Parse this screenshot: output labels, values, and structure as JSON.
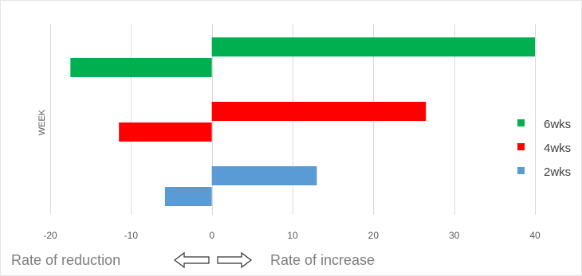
{
  "chart_data": {
    "type": "bar",
    "orientation": "horizontal",
    "ylabel": "WEEK",
    "xlim": [
      -20,
      40
    ],
    "xticks": [
      -20,
      -10,
      0,
      10,
      20,
      30,
      40
    ],
    "grid": true,
    "legend_position": "right",
    "series": [
      {
        "name": "6wks",
        "color": "#00b050",
        "values": [
          40,
          -17.5
        ]
      },
      {
        "name": "4wks",
        "color": "#ff0000",
        "values": [
          26.5,
          -11.5
        ]
      },
      {
        "name": "2wks",
        "color": "#5b9bd5",
        "values": [
          13,
          -5.8
        ]
      }
    ],
    "annotations": {
      "left_label": "Rate of reduction",
      "right_label": "Rate of increase"
    }
  }
}
